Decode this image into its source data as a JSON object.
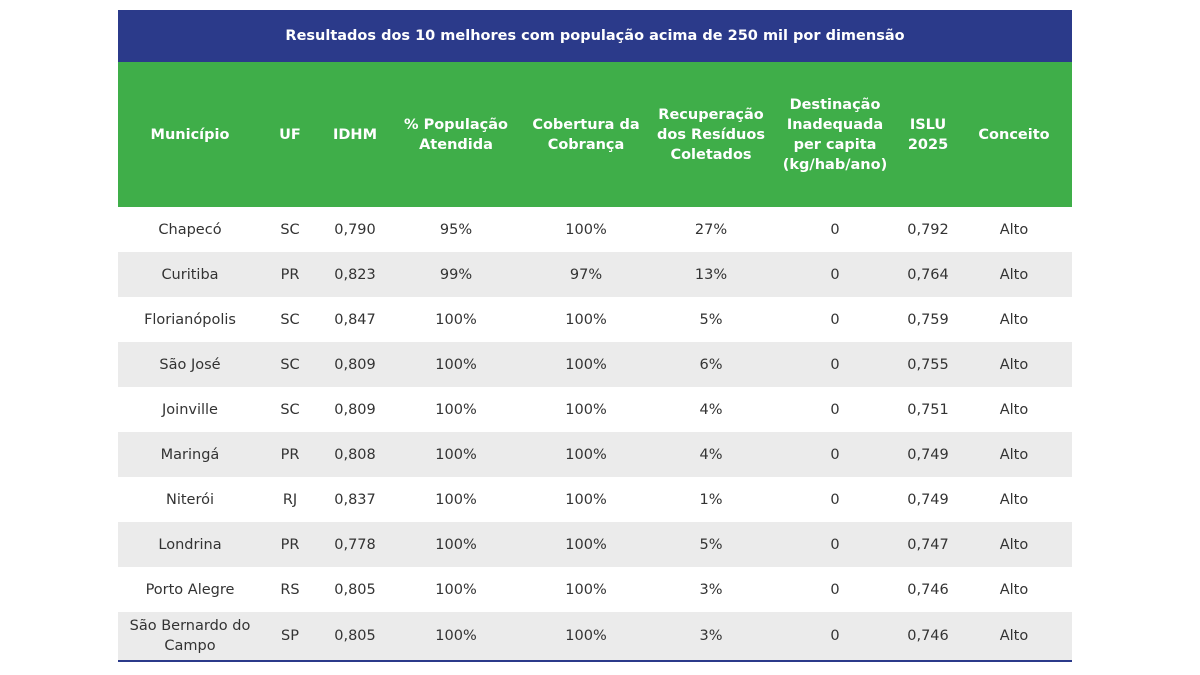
{
  "table": {
    "title": "Resultados dos 10 melhores com população acima de 250 mil por dimensão",
    "header": [
      [
        "Município"
      ],
      [
        "UF"
      ],
      [
        "IDHM"
      ],
      [
        "% População",
        "Atendida"
      ],
      [
        "Cobertura da",
        "Cobrança"
      ],
      [
        "Recuperação",
        "dos Resíduos",
        "Coletados"
      ],
      [
        "Destinação",
        "Inadequada",
        "per capita",
        "(kg/hab/ano)"
      ],
      [
        "ISLU",
        "2025"
      ],
      [
        "Conceito"
      ]
    ],
    "rows": [
      [
        [
          "Chapecó"
        ],
        "SC",
        "0,790",
        "95%",
        "100%",
        "27%",
        "0",
        "0,792",
        "Alto"
      ],
      [
        [
          "Curitiba"
        ],
        "PR",
        "0,823",
        "99%",
        "97%",
        "13%",
        "0",
        "0,764",
        "Alto"
      ],
      [
        [
          "Florianópolis"
        ],
        "SC",
        "0,847",
        "100%",
        "100%",
        "5%",
        "0",
        "0,759",
        "Alto"
      ],
      [
        [
          "São José"
        ],
        "SC",
        "0,809",
        "100%",
        "100%",
        "6%",
        "0",
        "0,755",
        "Alto"
      ],
      [
        [
          "Joinville"
        ],
        "SC",
        "0,809",
        "100%",
        "100%",
        "4%",
        "0",
        "0,751",
        "Alto"
      ],
      [
        [
          "Maringá"
        ],
        "PR",
        "0,808",
        "100%",
        "100%",
        "4%",
        "0",
        "0,749",
        "Alto"
      ],
      [
        [
          "Niterói"
        ],
        "RJ",
        "0,837",
        "100%",
        "100%",
        "1%",
        "0",
        "0,749",
        "Alto"
      ],
      [
        [
          "Londrina"
        ],
        "PR",
        "0,778",
        "100%",
        "100%",
        "5%",
        "0",
        "0,747",
        "Alto"
      ],
      [
        [
          "Porto Alegre"
        ],
        "RS",
        "0,805",
        "100%",
        "100%",
        "3%",
        "0",
        "0,746",
        "Alto"
      ],
      [
        [
          "São Bernardo do",
          "Campo"
        ],
        "SP",
        "0,805",
        "100%",
        "100%",
        "3%",
        "0",
        "0,746",
        "Alto"
      ]
    ]
  }
}
